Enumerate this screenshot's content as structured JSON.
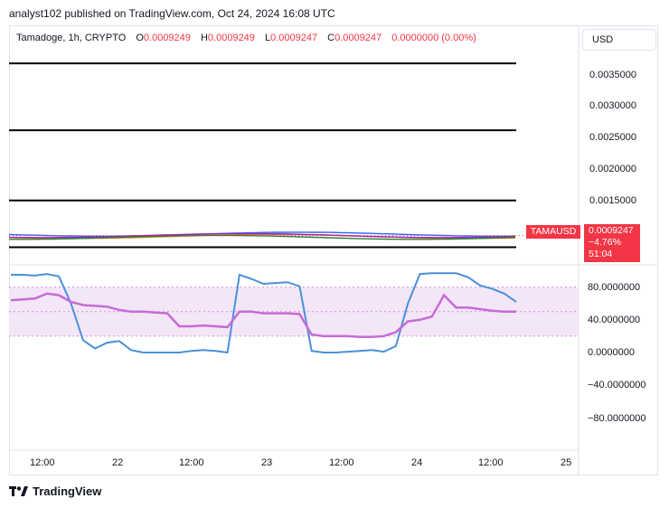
{
  "header": {
    "publisher_line": "analyst102 published on TradingView.com, Oct 24, 2024 16:08 UTC"
  },
  "legend": {
    "symbol": "Tamadoge, 1h, CRYPTO",
    "o_label": "O",
    "o_value": "0.0009249",
    "h_label": "H",
    "h_value": "0.0009249",
    "l_label": "L",
    "l_value": "0.0009247",
    "c_label": "C",
    "c_value": "0.0009247",
    "change": "0.0000000 (0.00%)"
  },
  "currency_button": "USD",
  "price_axis": [
    "0.0035000",
    "0.0030000",
    "0.0025000",
    "0.0020000",
    "0.0015000"
  ],
  "price_tag": {
    "symbol": "TAMAUSD",
    "price": "0.0009247",
    "change_pct": "−4.76%",
    "countdown": "51:04"
  },
  "stoch_axis": [
    "80.0000000",
    "40.0000000",
    "0.0000000",
    "−40.0000000",
    "−80.0000000"
  ],
  "time_axis": [
    "12:00",
    "22",
    "12:00",
    "23",
    "12:00",
    "24",
    "12:00",
    "25"
  ],
  "footer": {
    "brand": "TradingView"
  },
  "colors": {
    "accent_red": "#f23645",
    "k_line": "#4a90d9",
    "d_line": "#c76bd6",
    "band_fill": "#f3e6f7"
  },
  "chart_data": {
    "type": "line",
    "panes": [
      {
        "name": "price",
        "horizontal_levels": [
          0.0035,
          0.0025,
          0.00145,
          0.00075
        ],
        "last_price": 0.0009247,
        "ylim": [
          0.0005,
          0.0038
        ]
      },
      {
        "name": "stochastic_rsi",
        "ylim": [
          -100,
          100
        ],
        "bands": [
          20,
          80
        ],
        "midline": 50,
        "series": [
          {
            "values": [
              95,
              95,
              94,
              96,
              93,
              60,
              15,
              5,
              12,
              14,
              3,
              0,
              0,
              0,
              0,
              2,
              3,
              2,
              0,
              95,
              90,
              84,
              85,
              86,
              81,
              2,
              0,
              0,
              1,
              2,
              3,
              1,
              8,
              60,
              96,
              97,
              97,
              97,
              92,
              82,
              78,
              72,
              62
            ]
          },
          {
            "values": [
              64,
              65,
              66,
              72,
              70,
              62,
              58,
              57,
              56,
              52,
              50,
              50,
              49,
              48,
              32,
              32,
              33,
              32,
              31,
              50,
              50,
              48,
              48,
              48,
              47,
              22,
              20,
              20,
              20,
              19,
              19,
              20,
              25,
              38,
              40,
              44,
              70,
              55,
              55,
              53,
              51,
              50,
              50
            ]
          }
        ]
      }
    ]
  }
}
